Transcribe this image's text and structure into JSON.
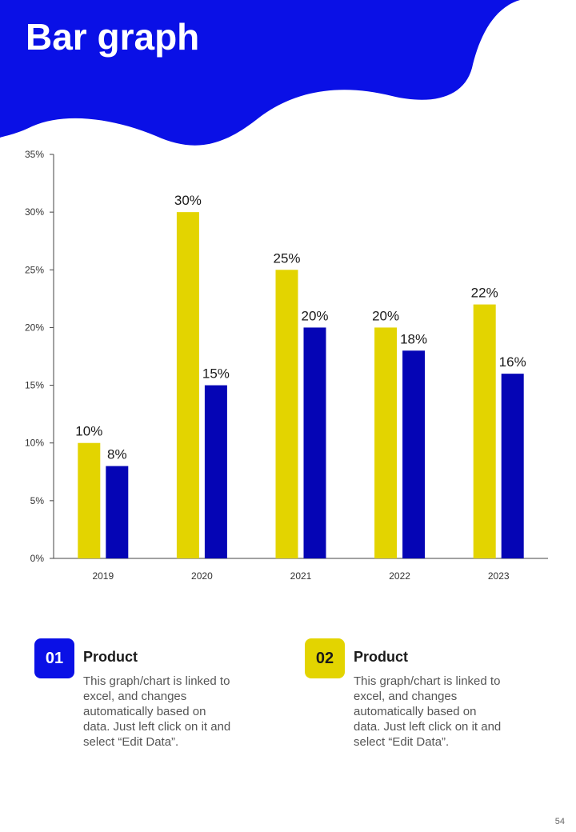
{
  "page": {
    "title": "Bar graph",
    "page_number": "54"
  },
  "colors": {
    "header_blue": "#0a10e6",
    "series_yellow": "#e3d400",
    "series_blue": "#0505b5"
  },
  "chart_data": {
    "type": "bar",
    "title": "",
    "xlabel": "",
    "ylabel": "",
    "categories": [
      "2019",
      "2020",
      "2021",
      "2022",
      "2023"
    ],
    "series": [
      {
        "name": "01 Product",
        "color": "#e3d400",
        "values": [
          10,
          30,
          25,
          20,
          22
        ],
        "labels": [
          "10%",
          "30%",
          "25%",
          "20%",
          "22%"
        ]
      },
      {
        "name": "02 Product",
        "color": "#0505b5",
        "values": [
          8,
          15,
          20,
          18,
          16
        ],
        "labels": [
          "8%",
          "15%",
          "20%",
          "18%",
          "16%"
        ]
      }
    ],
    "ylim": [
      0,
      35
    ],
    "yticks": [
      0,
      5,
      10,
      15,
      20,
      25,
      30,
      35
    ],
    "ytick_labels": [
      "0%",
      "5%",
      "10%",
      "15%",
      "20%",
      "25%",
      "30%",
      "35%"
    ],
    "grid": false
  },
  "legend": [
    {
      "number": "01",
      "title": "Product",
      "description": "This graph/chart is linked to excel, and changes automatically based on data. Just left click on it and select “Edit Data”."
    },
    {
      "number": "02",
      "title": "Product",
      "description": "This graph/chart is linked to excel, and changes automatically based on data. Just left click on it and select “Edit Data”."
    }
  ]
}
